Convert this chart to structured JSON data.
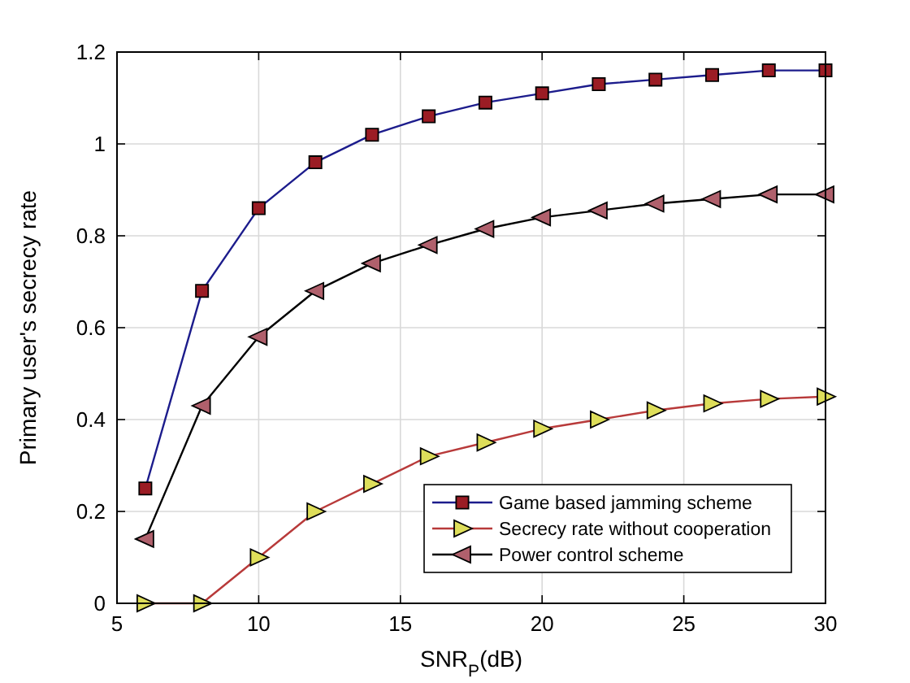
{
  "chart_data": {
    "type": "line",
    "xlabel": "SNR$_{P}$(dB)",
    "ylabel": "Primary user's secrecy rate",
    "x": [
      6,
      8,
      10,
      12,
      14,
      16,
      18,
      20,
      22,
      24,
      26,
      28,
      30
    ],
    "series": [
      {
        "name": "Game based jamming scheme",
        "color": "#1c1c8c",
        "marker": "square",
        "colors": [
          "#9b1c24",
          "#9b1c24",
          "#9b1c24",
          "#9b1c24",
          "#9b1c24",
          "#9b1c24",
          "#9b1c24",
          "#9b1c24",
          "#9b1c24",
          "#9b1c24",
          "#9b1c24",
          "#9b1c24",
          "#9b1c24"
        ],
        "values": [
          0.25,
          0.68,
          0.86,
          0.96,
          1.02,
          1.06,
          1.09,
          1.11,
          1.13,
          1.14,
          1.15,
          1.16,
          1.16
        ]
      },
      {
        "name": "Secrecy rate without cooperation",
        "color": "#b83a3a",
        "marker": "triangle-right",
        "colors": [
          "#dede5a",
          "#dede5a",
          "#dede5a",
          "#dede5a",
          "#dede5a",
          "#dede5a",
          "#dede5a",
          "#dede5a",
          "#dede5a",
          "#dede5a",
          "#dede5a",
          "#dede5a",
          "#dede5a"
        ],
        "values": [
          0,
          0,
          0.1,
          0.2,
          0.26,
          0.32,
          0.35,
          0.38,
          0.4,
          0.42,
          0.435,
          0.445,
          0.45
        ]
      },
      {
        "name": "Power control scheme",
        "color": "#000000",
        "marker": "triangle-left",
        "colors": [
          "#b0606c",
          "#b0606c",
          "#b0606c",
          "#b0606c",
          "#b0606c",
          "#b0606c",
          "#b0606c",
          "#b0606c",
          "#b0606c",
          "#b0606c",
          "#b0606c",
          "#b0606c",
          "#b0606c"
        ],
        "values": [
          0.14,
          0.43,
          0.58,
          0.68,
          0.74,
          0.78,
          0.815,
          0.84,
          0.855,
          0.87,
          0.88,
          0.89,
          0.89
        ]
      }
    ],
    "xlim": [
      5,
      30
    ],
    "xticks": [
      5,
      10,
      15,
      20,
      25,
      30
    ],
    "ylim": [
      0,
      1.2
    ],
    "yticks": [
      0,
      0.2,
      0.4,
      0.6,
      0.8,
      1,
      1.2
    ],
    "grid": true,
    "legend": "bottom right",
    "line_style": "solid"
  }
}
